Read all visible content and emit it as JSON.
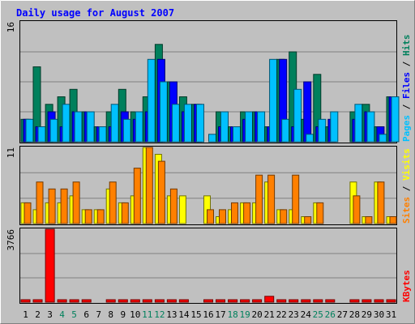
{
  "chart_data": {
    "type": "bar",
    "title": "Daily usage for August 2007",
    "days": [
      "1",
      "2",
      "3",
      "4",
      "5",
      "6",
      "7",
      "8",
      "9",
      "10",
      "11",
      "12",
      "13",
      "14",
      "15",
      "16",
      "17",
      "18",
      "19",
      "20",
      "21",
      "22",
      "23",
      "24",
      "25",
      "26",
      "27",
      "28",
      "29",
      "30",
      "31"
    ],
    "weekend_days": [
      "4",
      "5",
      "11",
      "12",
      "18",
      "19",
      "25",
      "26"
    ],
    "panels": [
      {
        "id": "top",
        "ymax": 16,
        "ymax_label": "16",
        "side_labels": [
          "Pages",
          "Files",
          "Hits"
        ],
        "series": [
          {
            "name": "Hits",
            "color": "#00805c",
            "values": [
              3,
              10,
              5,
              6,
              7,
              4,
              2,
              4,
              7,
              4,
              6,
              13,
              8,
              6,
              5,
              0,
              4,
              2,
              4,
              4,
              2,
              11,
              12,
              3,
              9,
              2,
              0,
              4,
              5,
              2,
              6
            ]
          },
          {
            "name": "Files",
            "color": "#0000ff",
            "values": [
              3,
              2,
              4,
              2,
              4,
              4,
              2,
              2,
              4,
              3,
              4,
              11,
              8,
              4,
              5,
              0,
              2,
              2,
              3,
              4,
              2,
              11,
              2,
              8,
              2,
              3,
              0,
              3,
              4,
              2,
              6
            ]
          },
          {
            "name": "Pages",
            "color": "#00c0ff",
            "values": [
              3,
              2,
              3,
              5,
              4,
              4,
              2,
              5,
              3,
              4,
              11,
              8,
              5,
              5,
              5,
              1,
              4,
              2,
              4,
              4,
              11,
              3,
              7,
              1,
              3,
              4,
              0,
              5,
              4,
              1,
              6
            ]
          }
        ]
      },
      {
        "id": "middle",
        "ymax": 11,
        "ymax_label": "11",
        "side_labels": [
          "Sites",
          "Visits"
        ],
        "series": [
          {
            "name": "Visits",
            "color": "#ffff00",
            "values": [
              3,
              2,
              3,
              3,
              4,
              2,
              2,
              5,
              3,
              4,
              11,
              10,
              4,
              4,
              0,
              4,
              1,
              2,
              3,
              3,
              6,
              2,
              2,
              1,
              3,
              0,
              0,
              6,
              1,
              6,
              1
            ]
          },
          {
            "name": "Sites",
            "color": "#ff8000",
            "values": [
              3,
              6,
              5,
              5,
              6,
              2,
              2,
              6,
              3,
              8,
              11,
              9,
              5,
              0,
              0,
              2,
              2,
              3,
              3,
              7,
              7,
              2,
              7,
              1,
              3,
              0,
              0,
              4,
              1,
              6,
              1
            ]
          }
        ]
      },
      {
        "id": "bottom",
        "ymax": 3766,
        "ymax_label": "3766",
        "side_labels": [
          "KBytes"
        ],
        "series": [
          {
            "name": "KBytes",
            "color": "#ff0000",
            "values": [
              40,
              120,
              3766,
              20,
              20,
              20,
              0,
              20,
              20,
              20,
              20,
              20,
              20,
              20,
              0,
              20,
              20,
              20,
              20,
              20,
              300,
              20,
              20,
              20,
              20,
              20,
              0,
              20,
              20,
              20,
              20
            ]
          }
        ]
      }
    ],
    "grid": true
  }
}
